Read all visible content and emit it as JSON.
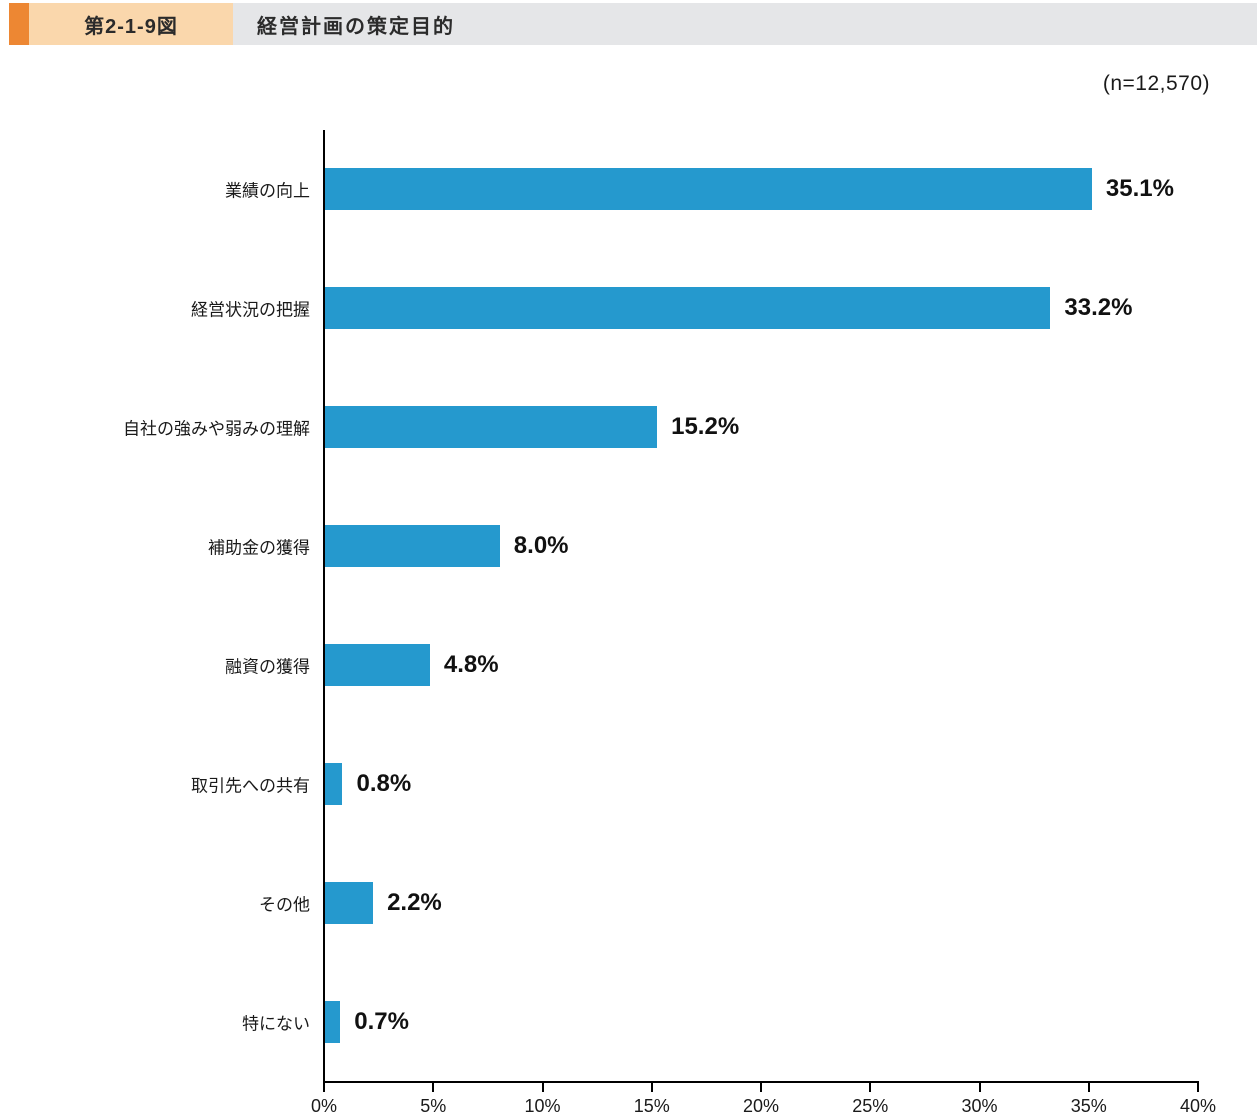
{
  "header": {
    "figure_label": "第2-1-9図",
    "title": "経営計画の策定目的",
    "accent_color": "#ED8733",
    "figbox_bg": "#FAD7AC",
    "titlebar_bg": "#E5E6E8"
  },
  "chart_data": {
    "type": "bar",
    "orientation": "horizontal",
    "title": "経営計画の策定目的",
    "n_label": "(n=12,570)",
    "categories": [
      "業績の向上",
      "経営状況の把握",
      "自社の強みや弱みの理解",
      "補助金の獲得",
      "融資の獲得",
      "取引先への共有",
      "その他",
      "特にない"
    ],
    "values": [
      35.1,
      33.2,
      15.2,
      8.0,
      4.8,
      0.8,
      2.2,
      0.7
    ],
    "value_labels": [
      "35.1%",
      "33.2%",
      "15.2%",
      "8.0%",
      "4.8%",
      "0.8%",
      "2.2%",
      "0.7%"
    ],
    "x_ticks": [
      "0%",
      "5%",
      "10%",
      "15%",
      "20%",
      "25%",
      "30%",
      "35%",
      "40%"
    ],
    "xlim": [
      0,
      40
    ],
    "xlabel": "",
    "ylabel": "",
    "grid": false,
    "legend": false,
    "bar_color": "#2599CE",
    "axis_color": "#000000"
  }
}
